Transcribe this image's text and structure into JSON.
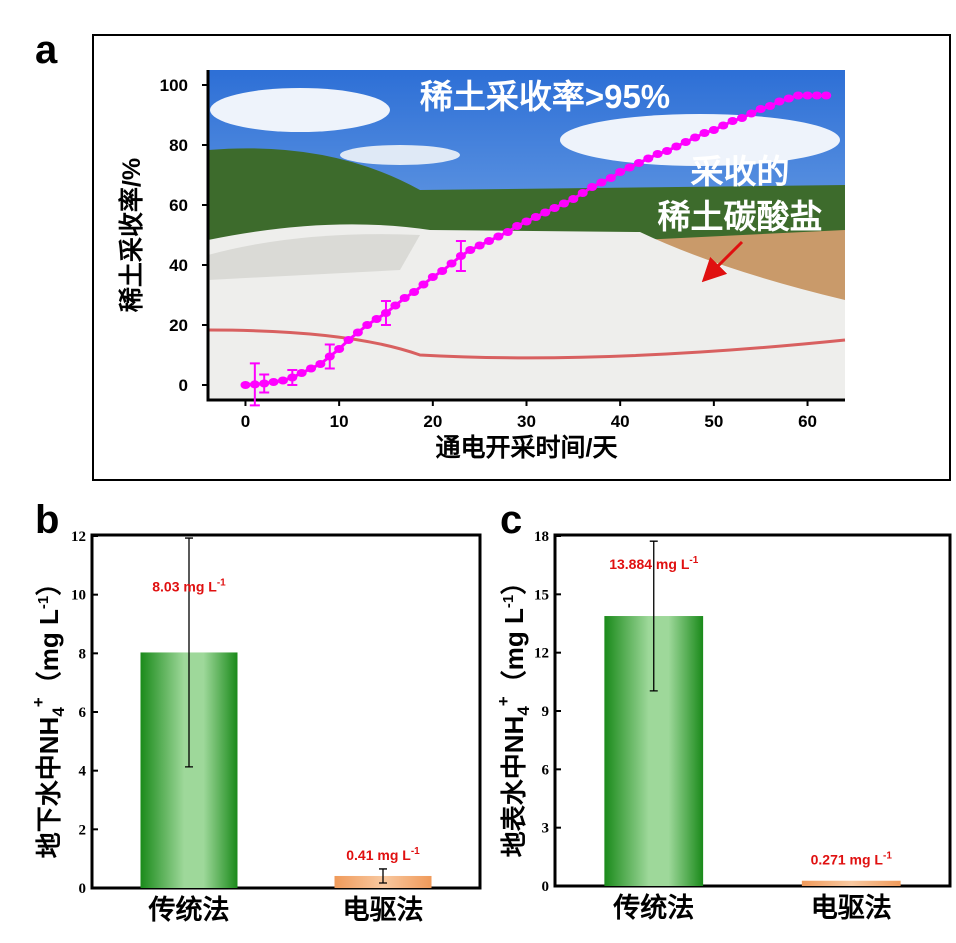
{
  "panel_labels": [
    "a",
    "b",
    "c"
  ],
  "chart_data": [
    {
      "type": "line",
      "panel": "a",
      "xlabel": "通电开采时间/天",
      "ylabel": "稀土采收率/%",
      "xlim": [
        -4,
        64
      ],
      "ylim": [
        -5,
        105
      ],
      "xticks": [
        0,
        10,
        20,
        30,
        40,
        50,
        60
      ],
      "yticks": [
        0,
        20,
        40,
        60,
        80,
        100
      ],
      "background": "photo of covered leaching field",
      "annotations": [
        "稀土采收率>95%",
        "采收的",
        "稀土碳酸盐"
      ],
      "color": "#ff00ff",
      "arrow_color": "#e01010",
      "x": [
        0,
        1,
        2,
        3,
        4,
        5,
        6,
        7,
        8,
        9,
        10,
        11,
        12,
        13,
        14,
        15,
        16,
        17,
        18,
        19,
        20,
        21,
        22,
        23,
        24,
        25,
        26,
        27,
        28,
        29,
        30,
        31,
        32,
        33,
        34,
        35,
        36,
        37,
        38,
        39,
        40,
        41,
        42,
        43,
        44,
        45,
        46,
        47,
        48,
        49,
        50,
        51,
        52,
        53,
        54,
        55,
        56,
        57,
        58,
        59,
        60,
        61,
        62
      ],
      "y": [
        0,
        0.2,
        0.5,
        1,
        1.5,
        2.5,
        4,
        5.5,
        7,
        9.5,
        12,
        15,
        17.5,
        20,
        22,
        24,
        26.5,
        29,
        31,
        33.5,
        36,
        38,
        40.5,
        43,
        45,
        46.5,
        48,
        49.5,
        51,
        53,
        54.5,
        56,
        57.5,
        59,
        60.5,
        62,
        64,
        66,
        67.5,
        69,
        71,
        72.5,
        74,
        75.5,
        77,
        78,
        79.5,
        81,
        82.5,
        84,
        85,
        86.5,
        88,
        89,
        90.5,
        92,
        93,
        94.5,
        95.5,
        96.5,
        96.5,
        96.5,
        96.5
      ],
      "error_bars": [
        {
          "x": 1,
          "err": 7
        },
        {
          "x": 2,
          "err": 3
        },
        {
          "x": 5,
          "err": 2.5
        },
        {
          "x": 9,
          "err": 4
        },
        {
          "x": 15,
          "err": 4
        },
        {
          "x": 23,
          "err": 5
        }
      ]
    },
    {
      "type": "bar",
      "panel": "b",
      "ylabel_main": "地下水中NH",
      "ylabel_sub": "4",
      "ylabel_sup": "+",
      "ylabel_unit": "（mg L",
      "ylabel_unit_sup": "-1",
      "ylabel_close": "）",
      "categories": [
        "传统法",
        "电驱法"
      ],
      "values": [
        8.03,
        0.41
      ],
      "errors": [
        3.9,
        0.24
      ],
      "data_labels": [
        "8.03 mg L",
        "0.41 mg L"
      ],
      "label_sup": "-1",
      "ylim": [
        0,
        12
      ],
      "yticks": [
        0,
        2,
        4,
        6,
        8,
        10,
        12
      ],
      "colors": [
        "#1e8f1e",
        "#f0a060"
      ],
      "label_color": "#e01010"
    },
    {
      "type": "bar",
      "panel": "c",
      "ylabel_main": "地表水中NH",
      "ylabel_sub": "4",
      "ylabel_sup": "+",
      "ylabel_unit": "（mg L",
      "ylabel_unit_sup": "-1",
      "ylabel_close": "）",
      "categories": [
        "传统法",
        "电驱法"
      ],
      "values": [
        13.884,
        0.271
      ],
      "errors": [
        3.85,
        0
      ],
      "data_labels": [
        "13.884 mg L",
        "0.271 mg L"
      ],
      "label_sup": "-1",
      "ylim": [
        0,
        18
      ],
      "yticks": [
        0,
        3,
        6,
        9,
        12,
        15,
        18
      ],
      "colors": [
        "#1e8f1e",
        "#f0a060"
      ],
      "label_color": "#e01010"
    }
  ]
}
